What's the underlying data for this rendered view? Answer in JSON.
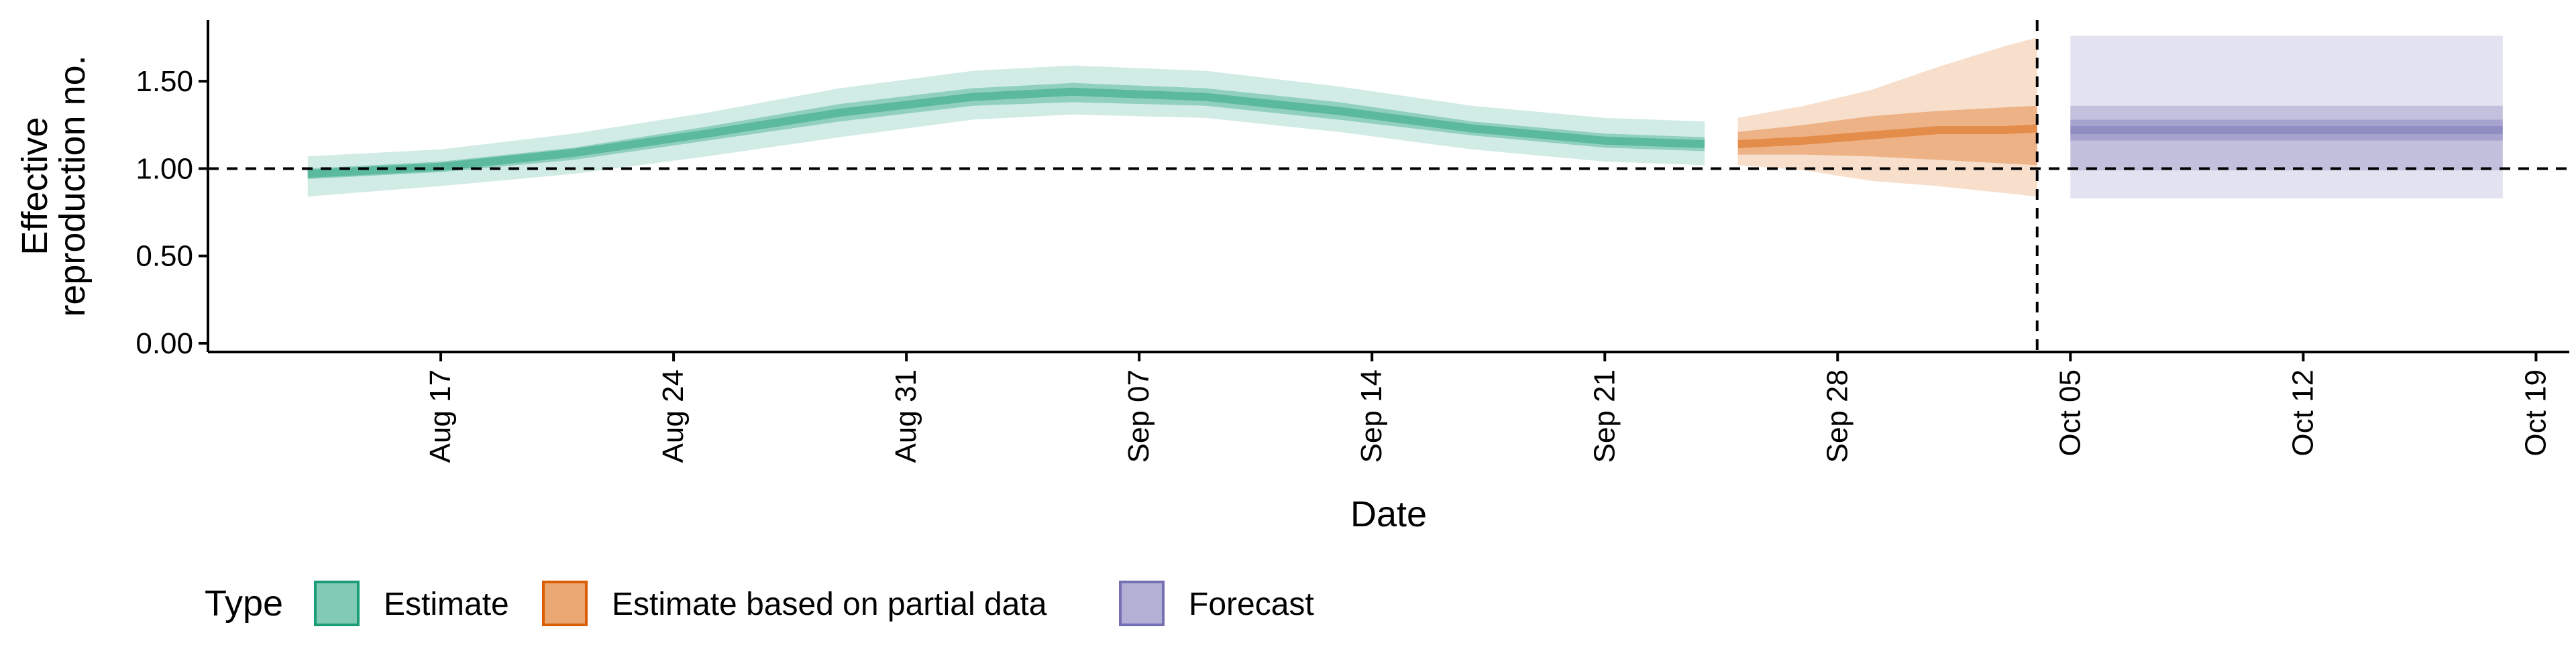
{
  "chart_data": {
    "type": "area",
    "xlabel": "Date",
    "ylabel_lines": [
      "Effective",
      "reproduction no."
    ],
    "ylim": [
      -0.05,
      1.85
    ],
    "xlim": [
      "2020-08-10",
      "2020-10-20"
    ],
    "y_ticks": [
      {
        "value": 0.0,
        "label": "0.00"
      },
      {
        "value": 0.5,
        "label": "0.50"
      },
      {
        "value": 1.0,
        "label": "1.00"
      },
      {
        "value": 1.5,
        "label": "1.50"
      }
    ],
    "x_ticks": [
      {
        "value": "2020-08-17",
        "label": "Aug 17"
      },
      {
        "value": "2020-08-24",
        "label": "Aug 24"
      },
      {
        "value": "2020-08-31",
        "label": "Aug 31"
      },
      {
        "value": "2020-09-07",
        "label": "Sep 07"
      },
      {
        "value": "2020-09-14",
        "label": "Sep 14"
      },
      {
        "value": "2020-09-21",
        "label": "Sep 21"
      },
      {
        "value": "2020-09-28",
        "label": "Sep 28"
      },
      {
        "value": "2020-10-05",
        "label": "Oct 05"
      },
      {
        "value": "2020-10-12",
        "label": "Oct 12"
      },
      {
        "value": "2020-10-19",
        "label": "Oct 19"
      }
    ],
    "reference_line_y": 1.0,
    "forecast_date_line": "2020-10-04",
    "grid": false,
    "legend_position": "bottom-left",
    "legend_title": "Type",
    "series": [
      {
        "name": "Estimate",
        "color": "#1B9E77",
        "x": [
          "2020-08-13",
          "2020-08-17",
          "2020-08-21",
          "2020-08-25",
          "2020-08-29",
          "2020-09-02",
          "2020-09-05",
          "2020-09-09",
          "2020-09-13",
          "2020-09-17",
          "2020-09-21",
          "2020-09-24"
        ],
        "median": [
          0.97,
          1.01,
          1.09,
          1.2,
          1.32,
          1.41,
          1.44,
          1.41,
          1.33,
          1.23,
          1.16,
          1.14
        ],
        "inner_low": [
          0.94,
          0.98,
          1.05,
          1.16,
          1.27,
          1.36,
          1.38,
          1.36,
          1.28,
          1.19,
          1.12,
          1.1
        ],
        "inner_high": [
          1.0,
          1.04,
          1.12,
          1.24,
          1.37,
          1.46,
          1.49,
          1.46,
          1.38,
          1.27,
          1.2,
          1.18
        ],
        "outer_low": [
          0.84,
          0.9,
          0.97,
          1.07,
          1.18,
          1.28,
          1.31,
          1.29,
          1.21,
          1.11,
          1.04,
          1.02
        ],
        "outer_high": [
          1.07,
          1.11,
          1.2,
          1.32,
          1.46,
          1.56,
          1.59,
          1.56,
          1.47,
          1.36,
          1.29,
          1.27
        ]
      },
      {
        "name": "Estimate based on partial data",
        "color": "#D95F02",
        "x": [
          "2020-09-25",
          "2020-09-27",
          "2020-09-29",
          "2020-10-01",
          "2020-10-03",
          "2020-10-04"
        ],
        "median": [
          1.14,
          1.16,
          1.19,
          1.22,
          1.22,
          1.23
        ],
        "inner_low": [
          1.08,
          1.08,
          1.07,
          1.05,
          1.03,
          1.02
        ],
        "inner_high": [
          1.21,
          1.25,
          1.3,
          1.33,
          1.35,
          1.36
        ],
        "outer_low": [
          1.02,
          0.99,
          0.93,
          0.9,
          0.86,
          0.84
        ],
        "outer_high": [
          1.29,
          1.36,
          1.45,
          1.58,
          1.7,
          1.75
        ]
      },
      {
        "name": "Forecast",
        "color": "#7570B3",
        "x": [
          "2020-10-05",
          "2020-10-18"
        ],
        "median": [
          1.22,
          1.22
        ],
        "inner_low": [
          1.16,
          1.16
        ],
        "inner_high": [
          1.28,
          1.28
        ],
        "mid_low": [
          0.99,
          0.99
        ],
        "mid_high": [
          1.36,
          1.36
        ],
        "outer_low": [
          0.83,
          0.83
        ],
        "outer_high": [
          1.76,
          1.76
        ]
      }
    ]
  }
}
